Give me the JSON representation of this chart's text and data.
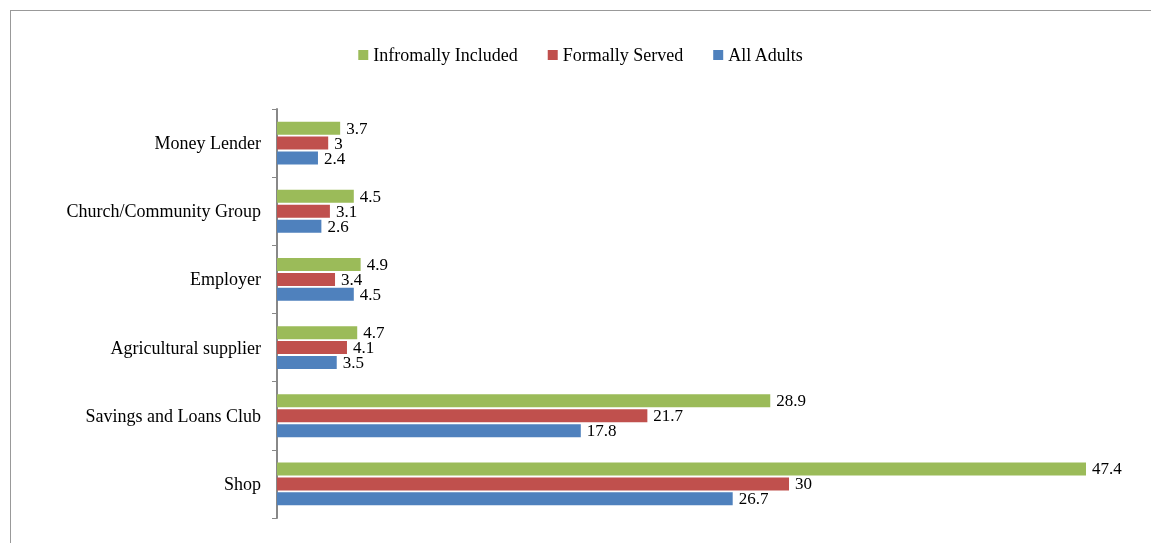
{
  "chart_data": {
    "type": "bar",
    "orientation": "horizontal",
    "categories": [
      "Money Lender",
      "Church/Community Group",
      "Employer",
      "Agricultural supplier",
      "Savings and Loans Club",
      "Shop"
    ],
    "series": [
      {
        "name": "Infromally Included",
        "color": "#9bbb59",
        "values": [
          3.7,
          4.5,
          4.9,
          4.7,
          28.9,
          47.4
        ]
      },
      {
        "name": "Formally Served",
        "color": "#c0504d",
        "values": [
          3,
          3.1,
          3.4,
          4.1,
          21.7,
          30
        ]
      },
      {
        "name": "All Adults",
        "color": "#4f81bd",
        "values": [
          2.4,
          2.6,
          4.5,
          3.5,
          17.8,
          26.7
        ]
      }
    ],
    "data_labels": true,
    "legend": "top",
    "grid": false,
    "tick_labels": "y"
  }
}
